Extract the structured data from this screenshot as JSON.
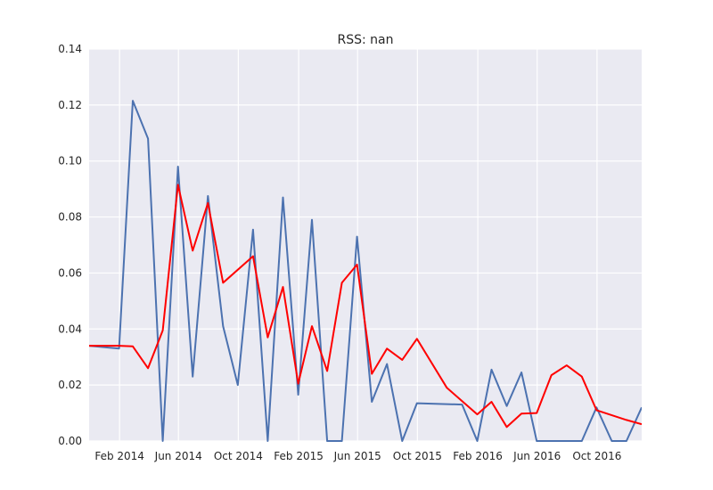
{
  "chart_data": {
    "type": "line",
    "title": "RSS: nan",
    "xlabel": "",
    "ylabel": "",
    "ylim": [
      0,
      0.14
    ],
    "yticks": [
      0.0,
      0.02,
      0.04,
      0.06,
      0.08,
      0.1,
      0.12,
      0.14
    ],
    "ytick_labels": [
      "0.00",
      "0.02",
      "0.04",
      "0.06",
      "0.08",
      "0.10",
      "0.12",
      "0.14"
    ],
    "xlim": [
      "2013-12-01",
      "2016-12-31"
    ],
    "xticks": [
      "2014-02-01",
      "2014-06-01",
      "2014-10-01",
      "2015-02-01",
      "2015-06-01",
      "2015-10-01",
      "2016-02-01",
      "2016-06-01",
      "2016-10-01"
    ],
    "xtick_labels": [
      "Feb 2014",
      "Jun 2014",
      "Oct 2014",
      "Feb 2015",
      "Jun 2015",
      "Oct 2015",
      "Feb 2016",
      "Jun 2016",
      "Oct 2016"
    ],
    "grid": true,
    "background": "#eaeaf2",
    "series": [
      {
        "color": "#4c72b0",
        "points": [
          [
            "2013-12-01",
            0.034
          ],
          [
            "2014-01-31",
            0.033
          ],
          [
            "2014-02-28",
            0.1215
          ],
          [
            "2014-03-31",
            0.108
          ],
          [
            "2014-04-30",
            0.0
          ],
          [
            "2014-05-31",
            0.098
          ],
          [
            "2014-06-30",
            0.023
          ],
          [
            "2014-07-31",
            0.0875
          ],
          [
            "2014-08-31",
            0.041
          ],
          [
            "2014-09-30",
            0.02
          ],
          [
            "2014-10-31",
            0.0755
          ],
          [
            "2014-11-30",
            0.0
          ],
          [
            "2014-12-31",
            0.087
          ],
          [
            "2015-01-31",
            0.0165
          ],
          [
            "2015-02-28",
            0.079
          ],
          [
            "2015-03-31",
            0.0
          ],
          [
            "2015-04-30",
            0.0
          ],
          [
            "2015-05-31",
            0.073
          ],
          [
            "2015-06-30",
            0.014
          ],
          [
            "2015-07-31",
            0.0275
          ],
          [
            "2015-08-31",
            0.0
          ],
          [
            "2015-09-30",
            0.0135
          ],
          [
            "2015-12-31",
            0.013
          ],
          [
            "2016-01-31",
            0.0
          ],
          [
            "2016-02-29",
            0.0255
          ],
          [
            "2016-03-31",
            0.0125
          ],
          [
            "2016-04-30",
            0.0245
          ],
          [
            "2016-05-31",
            0.0
          ],
          [
            "2016-08-31",
            0.0
          ],
          [
            "2016-09-30",
            0.012
          ],
          [
            "2016-10-31",
            0.0
          ],
          [
            "2016-11-30",
            0.0
          ],
          [
            "2016-12-31",
            0.012
          ]
        ]
      },
      {
        "color": "#ff0000",
        "points": [
          [
            "2013-12-01",
            0.034
          ],
          [
            "2014-01-31",
            0.034
          ],
          [
            "2014-02-28",
            0.0338
          ],
          [
            "2014-03-31",
            0.026
          ],
          [
            "2014-04-30",
            0.0395
          ],
          [
            "2014-05-31",
            0.0915
          ],
          [
            "2014-06-30",
            0.068
          ],
          [
            "2014-07-31",
            0.085
          ],
          [
            "2014-08-31",
            0.0565
          ],
          [
            "2014-10-31",
            0.066
          ],
          [
            "2014-11-30",
            0.037
          ],
          [
            "2014-12-31",
            0.055
          ],
          [
            "2015-01-31",
            0.0205
          ],
          [
            "2015-02-28",
            0.041
          ],
          [
            "2015-03-31",
            0.025
          ],
          [
            "2015-04-30",
            0.0565
          ],
          [
            "2015-05-31",
            0.063
          ],
          [
            "2015-06-30",
            0.024
          ],
          [
            "2015-07-31",
            0.033
          ],
          [
            "2015-08-31",
            0.029
          ],
          [
            "2015-09-30",
            0.0365
          ],
          [
            "2015-11-30",
            0.019
          ],
          [
            "2016-01-31",
            0.0095
          ],
          [
            "2016-02-29",
            0.014
          ],
          [
            "2016-03-31",
            0.005
          ],
          [
            "2016-04-30",
            0.0098
          ],
          [
            "2016-05-31",
            0.01
          ],
          [
            "2016-06-30",
            0.0235
          ],
          [
            "2016-07-31",
            0.027
          ],
          [
            "2016-08-31",
            0.023
          ],
          [
            "2016-09-30",
            0.011
          ],
          [
            "2016-11-30",
            0.0075
          ],
          [
            "2016-12-31",
            0.006
          ]
        ]
      }
    ]
  }
}
